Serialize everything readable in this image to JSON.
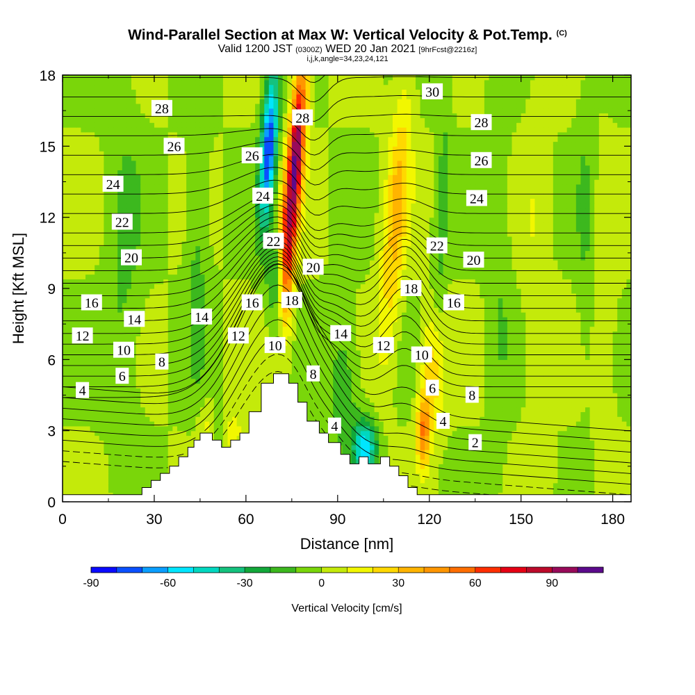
{
  "header": {
    "title": "Wind-Parallel Section at Max W: Vertical Velocity & Pot.Temp.",
    "copyright": "(C)",
    "valid_prefix": "Valid 1200 JST",
    "valid_utc": "(0300Z)",
    "valid_date": "WED 20 Jan 2021",
    "forecast": "[9hrFcst@2216z]",
    "indices": "i,j,k,angle=34,23,24,121"
  },
  "chart_data": {
    "type": "heatmap",
    "title": "Wind-Parallel Section at Max W: Vertical Velocity & Pot.Temp.",
    "xlabel": "Distance [nm]",
    "ylabel": "Height [Kft MSL]",
    "xlim": [
      0,
      186
    ],
    "ylim": [
      0,
      18
    ],
    "x_ticks": [
      0,
      30,
      60,
      90,
      120,
      150,
      180
    ],
    "y_ticks": [
      0,
      3,
      6,
      9,
      12,
      15,
      18
    ],
    "colorbar": {
      "title": "Vertical Velocity [cm/s]",
      "range": [
        -90,
        110
      ],
      "step": 10,
      "ticks": [
        -90,
        -60,
        -30,
        0,
        30,
        60,
        90
      ],
      "colors": [
        "#0a0aff",
        "#0a50ff",
        "#0a9eff",
        "#00e6ff",
        "#00d8c0",
        "#14c27e",
        "#12a83a",
        "#3cb81e",
        "#7ad60a",
        "#c4ea0a",
        "#f2f700",
        "#ffd800",
        "#ffb400",
        "#ff9600",
        "#ff6e00",
        "#ff2e00",
        "#e60014",
        "#bc0a2a",
        "#980a5a",
        "#5c0a8c"
      ]
    },
    "theta_labels": [
      {
        "value": "28",
        "x": 32.5,
        "y": 16.6
      },
      {
        "value": "26",
        "x": 36.5,
        "y": 15.0
      },
      {
        "value": "24",
        "x": 16.5,
        "y": 13.4
      },
      {
        "value": "22",
        "x": 19.5,
        "y": 11.8
      },
      {
        "value": "20",
        "x": 22.5,
        "y": 10.3
      },
      {
        "value": "16",
        "x": 9.5,
        "y": 8.4
      },
      {
        "value": "14",
        "x": 23.5,
        "y": 7.7
      },
      {
        "value": "12",
        "x": 6.5,
        "y": 7.0
      },
      {
        "value": "10",
        "x": 20.0,
        "y": 6.4
      },
      {
        "value": "8",
        "x": 32.5,
        "y": 5.9
      },
      {
        "value": "6",
        "x": 19.5,
        "y": 5.3
      },
      {
        "value": "4",
        "x": 6.5,
        "y": 4.7
      },
      {
        "value": "26",
        "x": 62.0,
        "y": 14.6
      },
      {
        "value": "24",
        "x": 65.5,
        "y": 12.9
      },
      {
        "value": "22",
        "x": 69.0,
        "y": 11.0
      },
      {
        "value": "28",
        "x": 78.5,
        "y": 16.2
      },
      {
        "value": "20",
        "x": 82.0,
        "y": 9.9
      },
      {
        "value": "18",
        "x": 75.0,
        "y": 8.5
      },
      {
        "value": "16",
        "x": 62.0,
        "y": 8.4
      },
      {
        "value": "14",
        "x": 45.5,
        "y": 7.8
      },
      {
        "value": "12",
        "x": 57.5,
        "y": 7.0
      },
      {
        "value": "10",
        "x": 69.5,
        "y": 6.6
      },
      {
        "value": "8",
        "x": 82.0,
        "y": 5.4
      },
      {
        "value": "14",
        "x": 91.0,
        "y": 7.1
      },
      {
        "value": "12",
        "x": 105.0,
        "y": 6.6
      },
      {
        "value": "4",
        "x": 89.0,
        "y": 3.2
      },
      {
        "value": "18",
        "x": 114.0,
        "y": 9.0
      },
      {
        "value": "22",
        "x": 122.5,
        "y": 10.8
      },
      {
        "value": "30",
        "x": 121.0,
        "y": 17.3
      },
      {
        "value": "28",
        "x": 137.0,
        "y": 16.0
      },
      {
        "value": "26",
        "x": 137.0,
        "y": 14.4
      },
      {
        "value": "24",
        "x": 135.5,
        "y": 12.8
      },
      {
        "value": "20",
        "x": 134.5,
        "y": 10.2
      },
      {
        "value": "16",
        "x": 128.0,
        "y": 8.4
      },
      {
        "value": "10",
        "x": 117.5,
        "y": 6.2
      },
      {
        "value": "6",
        "x": 121.0,
        "y": 4.8
      },
      {
        "value": "8",
        "x": 134.0,
        "y": 4.5
      },
      {
        "value": "4",
        "x": 124.5,
        "y": 3.4
      },
      {
        "value": "2",
        "x": 135.0,
        "y": 2.5
      }
    ],
    "terrain": [
      [
        0,
        0.3
      ],
      [
        26,
        0.3
      ],
      [
        26,
        0.6
      ],
      [
        29,
        0.6
      ],
      [
        29,
        0.9
      ],
      [
        32,
        0.9
      ],
      [
        32,
        1.2
      ],
      [
        35,
        1.2
      ],
      [
        35,
        1.5
      ],
      [
        38,
        1.5
      ],
      [
        38,
        1.9
      ],
      [
        41,
        1.9
      ],
      [
        41,
        2.3
      ],
      [
        43,
        2.3
      ],
      [
        43,
        2.6
      ],
      [
        45,
        2.6
      ],
      [
        45,
        2.9
      ],
      [
        49,
        2.9
      ],
      [
        49,
        2.6
      ],
      [
        52,
        2.6
      ],
      [
        52,
        2.3
      ],
      [
        55,
        2.3
      ],
      [
        55,
        2.6
      ],
      [
        58,
        2.6
      ],
      [
        58,
        2.9
      ],
      [
        61,
        2.9
      ],
      [
        61,
        3.8
      ],
      [
        65,
        3.8
      ],
      [
        65,
        5.0
      ],
      [
        69,
        5.0
      ],
      [
        69,
        5.4
      ],
      [
        74,
        5.4
      ],
      [
        74,
        5.0
      ],
      [
        77,
        5.0
      ],
      [
        77,
        4.2
      ],
      [
        80,
        4.2
      ],
      [
        80,
        3.4
      ],
      [
        84,
        3.4
      ],
      [
        84,
        2.9
      ],
      [
        87,
        2.9
      ],
      [
        87,
        2.5
      ],
      [
        91,
        2.5
      ],
      [
        91,
        2.0
      ],
      [
        94,
        2.0
      ],
      [
        94,
        1.6
      ],
      [
        97,
        1.6
      ],
      [
        97,
        1.9
      ],
      [
        100,
        1.9
      ],
      [
        100,
        1.6
      ],
      [
        104,
        1.6
      ],
      [
        104,
        1.9
      ],
      [
        107,
        1.9
      ],
      [
        107,
        1.5
      ],
      [
        110,
        1.5
      ],
      [
        110,
        1.1
      ],
      [
        113,
        1.1
      ],
      [
        113,
        0.6
      ],
      [
        116,
        0.6
      ],
      [
        116,
        0.3
      ],
      [
        186,
        0.3
      ]
    ]
  }
}
